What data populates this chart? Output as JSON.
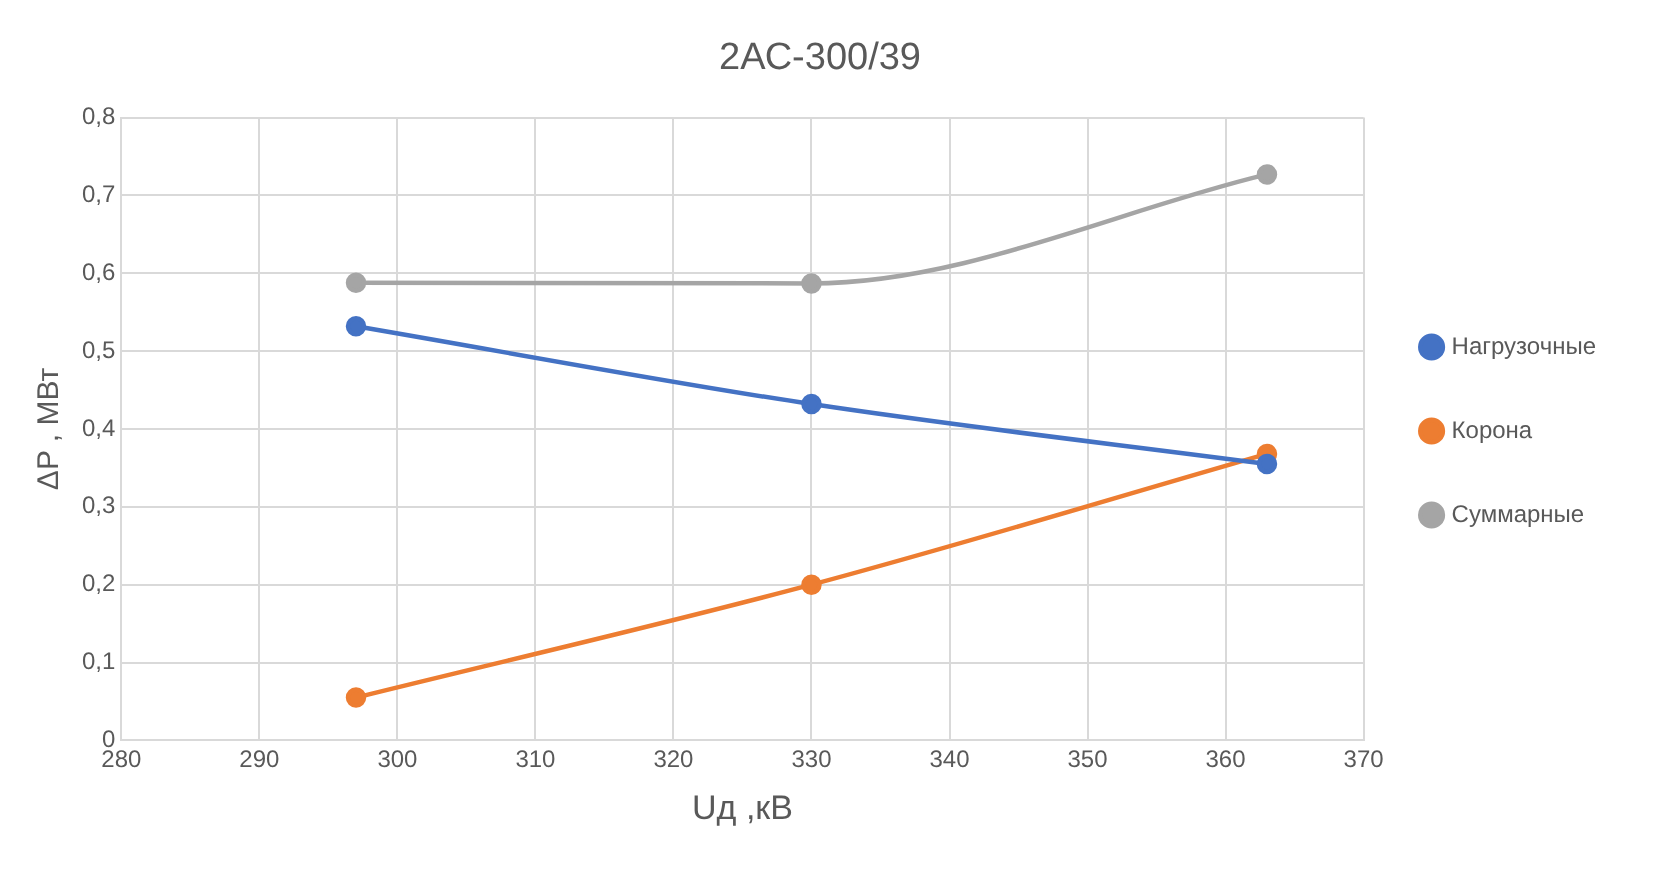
{
  "chart_data": {
    "type": "line",
    "title": "2АС-300/39",
    "xlabel": "Uд ,кВ",
    "ylabel": "ΔP , МВт",
    "x": [
      297,
      330,
      363
    ],
    "series": [
      {
        "name": "Нагрузочные",
        "color": "#4472c4",
        "values": [
          0.532,
          0.432,
          0.355
        ]
      },
      {
        "name": "Корона",
        "color": "#ed7d31",
        "values": [
          0.055,
          0.2,
          0.368
        ]
      },
      {
        "name": "Суммарные",
        "color": "#a5a5a5",
        "values": [
          0.588,
          0.587,
          0.727
        ]
      }
    ],
    "xlim": [
      280,
      370
    ],
    "xticks": [
      280,
      290,
      300,
      310,
      320,
      330,
      340,
      350,
      360,
      370
    ],
    "ylim": [
      0,
      0.8
    ],
    "yticks": [
      0,
      {
        "value": 0.1,
        "label": "0,1"
      },
      {
        "value": 0.2,
        "label": "0,2"
      },
      {
        "value": 0.3,
        "label": "0,3"
      },
      {
        "value": 0.4,
        "label": "0,4"
      },
      {
        "value": 0.5,
        "label": "0,5"
      },
      {
        "value": 0.6,
        "label": "0,6"
      },
      {
        "value": 0.7,
        "label": "0,7"
      },
      {
        "value": 0.8,
        "label": "0,8"
      }
    ],
    "grid": true,
    "legend": "right",
    "marker": "circle",
    "line_style": "solid"
  }
}
